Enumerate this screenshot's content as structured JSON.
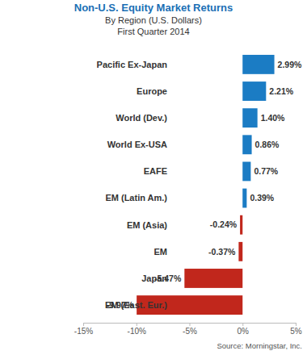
{
  "chart_data": {
    "type": "bar",
    "title": "Non-U.S. Equity Market Returns",
    "subtitle": [
      "By Region (U.S. Dollars)",
      "First Quarter 2014"
    ],
    "annotations": [
      "Source: Morningstar, Inc."
    ],
    "orientation": "horizontal",
    "categories": [
      "Pacific Ex-Japan",
      "Europe",
      "World (Dev.)",
      "World Ex-USA",
      "EAFE",
      "EM (Latin Am.)",
      "EM (Asia)",
      "EM",
      "Japan",
      "EM (East. Eur.)"
    ],
    "values": [
      2.99,
      2.21,
      1.4,
      0.86,
      0.77,
      0.39,
      -0.24,
      -0.37,
      -5.47,
      -9.97
    ],
    "value_labels": [
      "2.99%",
      "2.21%",
      "1.40%",
      "0.86%",
      "0.77%",
      "0.39%",
      "-0.24%",
      "-0.37%",
      "-5.47%",
      "-9.97%"
    ],
    "colors": [
      "#1b7cc4",
      "#1b7cc4",
      "#1b7cc4",
      "#1b7cc4",
      "#1b7cc4",
      "#1b7cc4",
      "#c1271c",
      "#c1271c",
      "#c1271c",
      "#c1271c"
    ],
    "xlim": [
      -15,
      5
    ],
    "xticks": [
      {
        "value": -15,
        "label": "-15%"
      },
      {
        "value": -10,
        "label": "-10%"
      },
      {
        "value": -5,
        "label": "-5%"
      },
      {
        "value": 0,
        "label": "0%"
      },
      {
        "value": 5,
        "label": "5%"
      }
    ],
    "data_labels": true,
    "grid": false
  }
}
